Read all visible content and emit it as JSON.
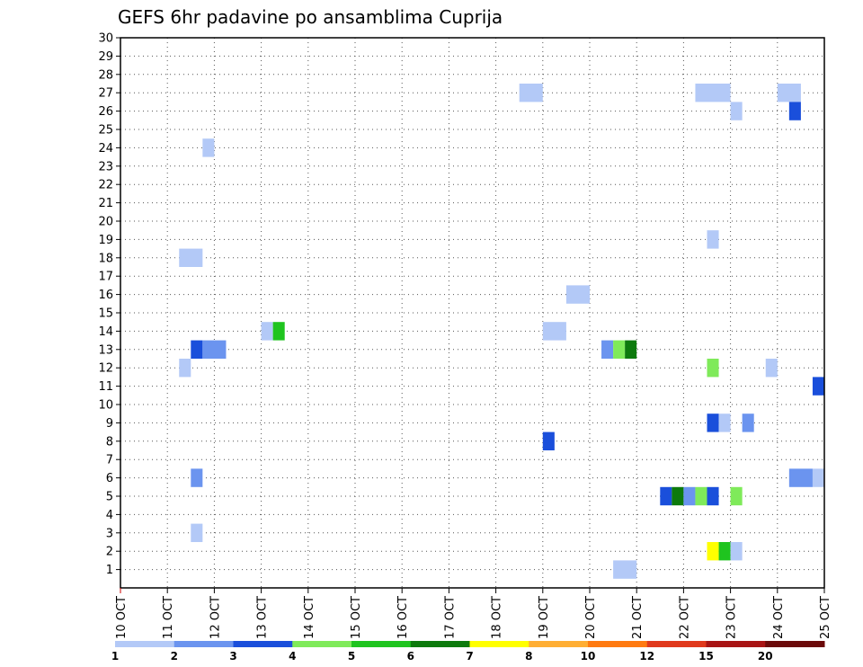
{
  "chart_data": {
    "type": "heatmap",
    "title": "GEFS 6hr padavine po ansamblima Cuprija",
    "xlabel": "",
    "ylabel": "",
    "x_start_day": 10,
    "x_end_day": 25,
    "x_tick_labels": [
      "10 OCT",
      "11 OCT",
      "12 OCT",
      "13 OCT",
      "14 OCT",
      "15 OCT",
      "16 OCT",
      "17 OCT",
      "18 OCT",
      "19 OCT",
      "20 OCT",
      "21 OCT",
      "22 OCT",
      "23 OCT",
      "24 OCT",
      "25 OCT"
    ],
    "y_tick_labels": [
      "1",
      "2",
      "3",
      "4",
      "5",
      "6",
      "7",
      "8",
      "9",
      "10",
      "11",
      "12",
      "13",
      "14",
      "15",
      "16",
      "17",
      "18",
      "19",
      "20",
      "21",
      "22",
      "23",
      "24",
      "25",
      "26",
      "27",
      "28",
      "29",
      "30"
    ],
    "ylim": [
      0,
      30
    ],
    "grid": true,
    "legend": {
      "position": "bottom",
      "colors": [
        "#b3c9f7",
        "#6b94ef",
        "#1a4fdb",
        "#7fea5a",
        "#1fc41f",
        "#0d7a0d",
        "#ffff00",
        "#ffae33",
        "#ff7a10",
        "#e0391c",
        "#a81414",
        "#6b0a0a"
      ],
      "labels": [
        "1",
        "2",
        "3",
        "4",
        "5",
        "6",
        "7",
        "8",
        "10",
        "12",
        "15",
        "20"
      ]
    },
    "cells": [
      {
        "member": 27,
        "start": 18.5,
        "end": 19.0,
        "level": 1
      },
      {
        "member": 27,
        "start": 22.25,
        "end": 23.0,
        "level": 1
      },
      {
        "member": 27,
        "start": 24.0,
        "end": 24.5,
        "level": 1
      },
      {
        "member": 26,
        "start": 23.0,
        "end": 23.25,
        "level": 1
      },
      {
        "member": 26,
        "start": 24.25,
        "end": 24.5,
        "level": 3
      },
      {
        "member": 24,
        "start": 11.75,
        "end": 12.0,
        "level": 1
      },
      {
        "member": 19,
        "start": 22.5,
        "end": 22.75,
        "level": 1
      },
      {
        "member": 18,
        "start": 11.25,
        "end": 11.75,
        "level": 1
      },
      {
        "member": 16,
        "start": 19.5,
        "end": 20.0,
        "level": 1
      },
      {
        "member": 14,
        "start": 13.0,
        "end": 13.25,
        "level": 1
      },
      {
        "member": 14,
        "start": 13.25,
        "end": 13.5,
        "level": 5
      },
      {
        "member": 14,
        "start": 19.0,
        "end": 19.5,
        "level": 1
      },
      {
        "member": 13,
        "start": 11.5,
        "end": 11.75,
        "level": 3
      },
      {
        "member": 13,
        "start": 11.75,
        "end": 12.25,
        "level": 2
      },
      {
        "member": 13,
        "start": 20.25,
        "end": 20.5,
        "level": 2
      },
      {
        "member": 13,
        "start": 20.5,
        "end": 20.75,
        "level": 4
      },
      {
        "member": 13,
        "start": 20.75,
        "end": 21.0,
        "level": 6
      },
      {
        "member": 12,
        "start": 11.25,
        "end": 11.5,
        "level": 1
      },
      {
        "member": 12,
        "start": 22.5,
        "end": 22.75,
        "level": 4
      },
      {
        "member": 12,
        "start": 23.75,
        "end": 24.0,
        "level": 1
      },
      {
        "member": 11,
        "start": 24.75,
        "end": 25.0,
        "level": 3
      },
      {
        "member": 9,
        "start": 22.5,
        "end": 22.75,
        "level": 3
      },
      {
        "member": 9,
        "start": 22.75,
        "end": 23.0,
        "level": 1
      },
      {
        "member": 9,
        "start": 23.25,
        "end": 23.5,
        "level": 2
      },
      {
        "member": 8,
        "start": 19.0,
        "end": 19.25,
        "level": 3
      },
      {
        "member": 6,
        "start": 11.5,
        "end": 11.75,
        "level": 2
      },
      {
        "member": 6,
        "start": 24.25,
        "end": 24.75,
        "level": 2
      },
      {
        "member": 6,
        "start": 24.75,
        "end": 25.0,
        "level": 1
      },
      {
        "member": 5,
        "start": 21.5,
        "end": 21.75,
        "level": 3
      },
      {
        "member": 5,
        "start": 21.75,
        "end": 22.0,
        "level": 6
      },
      {
        "member": 5,
        "start": 22.0,
        "end": 22.25,
        "level": 2
      },
      {
        "member": 5,
        "start": 22.25,
        "end": 22.5,
        "level": 4
      },
      {
        "member": 5,
        "start": 22.5,
        "end": 22.75,
        "level": 3
      },
      {
        "member": 5,
        "start": 23.0,
        "end": 23.25,
        "level": 4
      },
      {
        "member": 3,
        "start": 11.5,
        "end": 11.75,
        "level": 1
      },
      {
        "member": 2,
        "start": 22.5,
        "end": 22.75,
        "level": 7
      },
      {
        "member": 2,
        "start": 22.75,
        "end": 23.0,
        "level": 5
      },
      {
        "member": 2,
        "start": 23.0,
        "end": 23.25,
        "level": 1
      },
      {
        "member": 1,
        "start": 20.5,
        "end": 21.0,
        "level": 1
      }
    ]
  }
}
